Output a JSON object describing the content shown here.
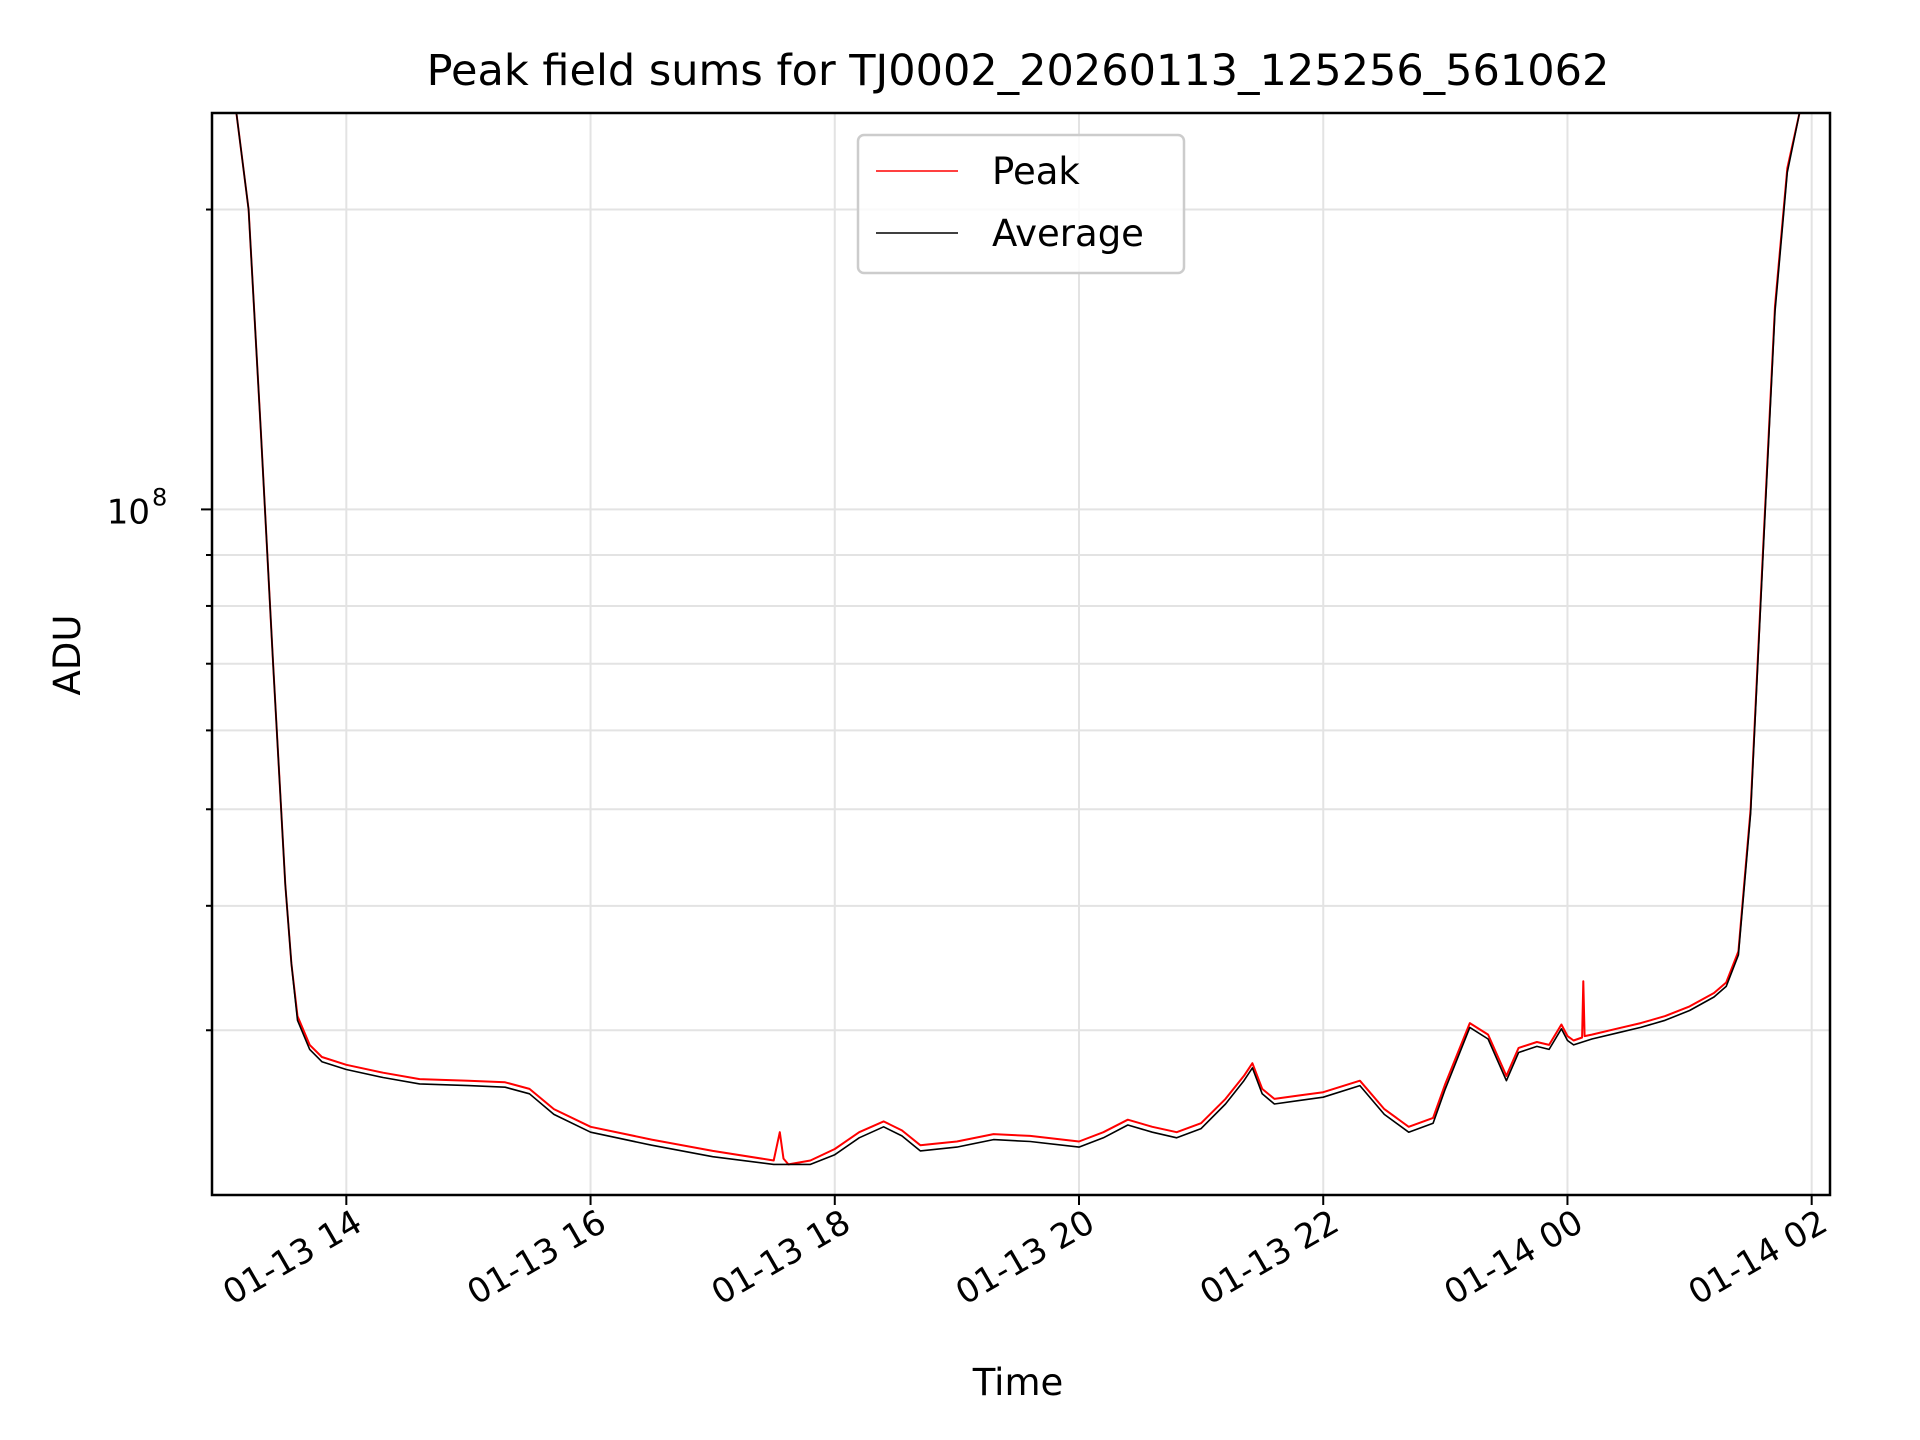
{
  "chart_data": {
    "type": "line",
    "title": "Peak field sums for TJ0002_20260113_125256_561062",
    "xlabel": "Time",
    "ylabel": "ADU",
    "yscale": "log",
    "grid": true,
    "legend_position": "top-center",
    "xlim": [
      12.9,
      26.15
    ],
    "ylim": [
      20500000,
      250000000
    ],
    "x_unit": "hours since 01-13 00:00",
    "x_ticks": [
      {
        "value": 14,
        "label": "01-13 14"
      },
      {
        "value": 16,
        "label": "01-13 16"
      },
      {
        "value": 18,
        "label": "01-13 18"
      },
      {
        "value": 20,
        "label": "01-13 20"
      },
      {
        "value": 22,
        "label": "01-13 22"
      },
      {
        "value": 24,
        "label": "01-14 00"
      },
      {
        "value": 26,
        "label": "01-14 02"
      }
    ],
    "y_major_ticks": [
      {
        "value": 100000000,
        "base": "10",
        "exponent": "8"
      }
    ],
    "y_minor_ticks": [
      20000000,
      30000000,
      40000000,
      50000000,
      60000000,
      70000000,
      80000000,
      90000000,
      200000000
    ],
    "series": [
      {
        "name": "Peak",
        "color": "#ff0000",
        "x": [
          13.1,
          13.2,
          13.3,
          13.4,
          13.5,
          13.55,
          13.6,
          13.7,
          13.8,
          14.0,
          14.3,
          14.6,
          15.0,
          15.3,
          15.5,
          15.7,
          16.0,
          16.5,
          17.0,
          17.5,
          17.55,
          17.58,
          17.62,
          17.8,
          18.0,
          18.2,
          18.4,
          18.55,
          18.7,
          19.0,
          19.3,
          19.6,
          20.0,
          20.2,
          20.4,
          20.6,
          20.8,
          21.0,
          21.2,
          21.35,
          21.42,
          21.5,
          21.6,
          21.8,
          22.0,
          22.3,
          22.5,
          22.7,
          22.9,
          23.0,
          23.2,
          23.35,
          23.5,
          23.6,
          23.75,
          23.85,
          23.95,
          24.0,
          24.05,
          24.12,
          24.13,
          24.14,
          24.2,
          24.4,
          24.6,
          24.8,
          25.0,
          25.2,
          25.3,
          25.4,
          25.5,
          25.6,
          25.7,
          25.8,
          25.9,
          25.95
        ],
        "y": [
          250000000,
          200000000,
          120000000,
          70000000,
          42000000,
          35000000,
          31000000,
          29000000,
          28200000,
          27700000,
          27200000,
          26800000,
          26700000,
          26600000,
          26200000,
          25000000,
          24000000,
          23300000,
          22700000,
          22200000,
          23700000,
          22300000,
          22000000,
          22200000,
          22800000,
          23700000,
          24300000,
          23800000,
          23000000,
          23200000,
          23600000,
          23500000,
          23200000,
          23700000,
          24400000,
          24000000,
          23700000,
          24200000,
          25600000,
          27000000,
          27800000,
          26200000,
          25600000,
          25800000,
          26000000,
          26700000,
          25000000,
          24000000,
          24500000,
          26500000,
          30500000,
          29700000,
          27000000,
          28800000,
          29200000,
          29000000,
          30400000,
          29600000,
          29300000,
          29500000,
          33600000,
          29600000,
          29700000,
          30100000,
          30500000,
          31000000,
          31700000,
          32700000,
          33500000,
          36000000,
          50000000,
          90000000,
          160000000,
          220000000,
          250000000,
          250000000
        ]
      },
      {
        "name": "Average",
        "color": "#000000",
        "x": [
          13.1,
          13.2,
          13.3,
          13.4,
          13.5,
          13.55,
          13.6,
          13.7,
          13.8,
          14.0,
          14.3,
          14.6,
          15.0,
          15.3,
          15.5,
          15.7,
          16.0,
          16.5,
          17.0,
          17.5,
          17.8,
          18.0,
          18.2,
          18.4,
          18.55,
          18.7,
          19.0,
          19.3,
          19.6,
          20.0,
          20.2,
          20.4,
          20.6,
          20.8,
          21.0,
          21.2,
          21.35,
          21.42,
          21.5,
          21.6,
          21.8,
          22.0,
          22.3,
          22.5,
          22.7,
          22.9,
          23.0,
          23.2,
          23.35,
          23.5,
          23.6,
          23.75,
          23.85,
          23.95,
          24.0,
          24.05,
          24.2,
          24.4,
          24.6,
          24.8,
          25.0,
          25.2,
          25.3,
          25.4,
          25.5,
          25.6,
          25.7,
          25.8,
          25.9,
          25.95
        ],
        "y": [
          250000000,
          200000000,
          120000000,
          70000000,
          42000000,
          35000000,
          30700000,
          28700000,
          27900000,
          27400000,
          26900000,
          26500000,
          26400000,
          26300000,
          25900000,
          24700000,
          23700000,
          23000000,
          22400000,
          22000000,
          22000000,
          22500000,
          23400000,
          24000000,
          23500000,
          22700000,
          22900000,
          23300000,
          23200000,
          22900000,
          23400000,
          24100000,
          23700000,
          23400000,
          23900000,
          25300000,
          26700000,
          27500000,
          25900000,
          25300000,
          25500000,
          25700000,
          26400000,
          24700000,
          23700000,
          24200000,
          26200000,
          30200000,
          29400000,
          26700000,
          28500000,
          28900000,
          28700000,
          30100000,
          29300000,
          29000000,
          29400000,
          29800000,
          30200000,
          30700000,
          31400000,
          32400000,
          33200000,
          35700000,
          49500000,
          89000000,
          158000000,
          218000000,
          250000000,
          250000000
        ]
      }
    ]
  }
}
